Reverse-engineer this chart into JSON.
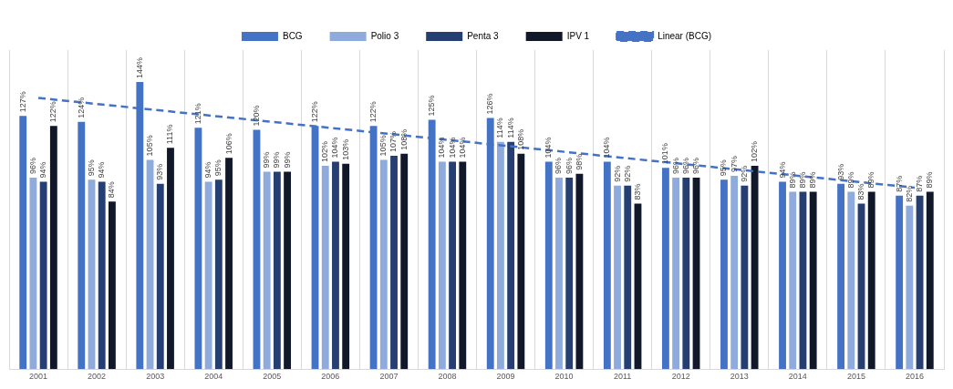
{
  "chart_data": {
    "type": "bar",
    "categories": [
      "2001",
      "2002",
      "2003",
      "2004",
      "2005",
      "2006",
      "2007",
      "2008",
      "2009",
      "2010",
      "2011",
      "2012",
      "2013",
      "2014",
      "2015",
      "2016"
    ],
    "series": [
      {
        "name": "BCG",
        "color": "#4472c4",
        "values": [
          127,
          124,
          144,
          121,
          120,
          122,
          122,
          125,
          126,
          104,
          104,
          101,
          95,
          94,
          93,
          87
        ],
        "value_labels": [
          "127%",
          "124%",
          "144%",
          "121%",
          "120%",
          "122%",
          "122%",
          "125%",
          "126%",
          "104%",
          "104%",
          "101%",
          "95%",
          "94%",
          "93%",
          "87%"
        ]
      },
      {
        "name": "Polio 3",
        "color": "#8faadc",
        "values": [
          96,
          95,
          105,
          94,
          99,
          102,
          105,
          104,
          114,
          96,
          92,
          96,
          97,
          89,
          89,
          82
        ],
        "value_labels": [
          "96%",
          "95%",
          "105%",
          "94%",
          "99%",
          "102%",
          "105%",
          "104%",
          "114%",
          "96%",
          "92%",
          "96%",
          "97%",
          "89%",
          "89%",
          "82%"
        ]
      },
      {
        "name": "Penta 3",
        "color": "#263f73",
        "values": [
          94,
          94,
          93,
          95,
          99,
          104,
          107,
          104,
          114,
          96,
          92,
          96,
          92,
          89,
          83,
          87
        ],
        "value_labels": [
          "94%",
          "94%",
          "93%",
          "95%",
          "99%",
          "104%",
          "107%",
          "104%",
          "114%",
          "96%",
          "92%",
          "96%",
          "92%",
          "89%",
          "83%",
          "87%"
        ]
      },
      {
        "name": "IPV 1",
        "color": "#111829",
        "values": [
          122,
          84,
          111,
          106,
          99,
          103,
          108,
          104,
          108,
          98,
          83,
          96,
          102,
          89,
          89,
          89
        ],
        "value_labels": [
          "122%",
          "84%",
          "111%",
          "106%",
          "99%",
          "103%",
          "108%",
          "104%",
          "108%",
          "98%",
          "83%",
          "96%",
          "102%",
          "89%",
          "89%",
          "89%"
        ]
      },
      {
        "name": "Linear (BCG)",
        "type": "line",
        "color": "#4472c4",
        "line_style": "dashed",
        "marker": "none",
        "values": [
          136,
          133,
          130,
          127,
          124,
          121,
          118,
          115,
          112,
          109,
          106,
          103,
          100,
          97,
          94,
          91
        ]
      }
    ],
    "legend": "top",
    "grid": "x"
  }
}
